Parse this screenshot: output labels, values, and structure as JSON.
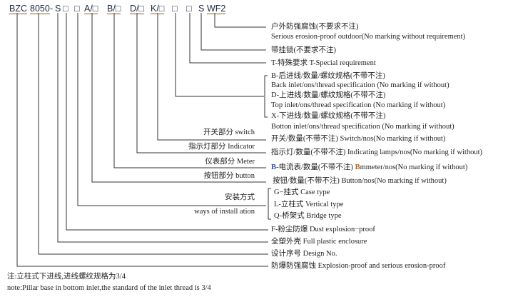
{
  "model_code": {
    "parts": [
      "BZC",
      "8050",
      "-",
      "S",
      "□",
      "□",
      "A/□",
      "B/□",
      "D/□",
      "K/□",
      "□",
      "□",
      "S",
      "WF2"
    ]
  },
  "descriptions": {
    "outdoor_cn": "户外防强腐蚀(不要求不注)",
    "outdoor_en": "Serious erosion-proof outdoor(No marking without requirement)",
    "padlock": "带挂锁(不要求不注)",
    "special": "T-特殊要求 T-Special requirement",
    "back_cn": "B-后进线/数量/螺纹规格(不带不注)",
    "back_en": "Back inlet/ons/thread specification (No marking if without)",
    "top_cn": "D-上进线/数量/螺纹规格(不带不注)",
    "top_en": "Top inlet/ons/thread specification (No marking if without)",
    "bottom_cn": "X-下进线/数量/螺纹规格(不带不注)",
    "bottom_en": "Botton inlet/ons/thread specification (No marking if without)",
    "switch": "开关/数量(不带不注) Switch/nos(No marking if without)",
    "indicator": "指示灯/数量(不带不注) Indicating lamps/nos(No marking if without)",
    "meter_prefix": "B",
    "meter_mid": "-电流表/数量(不带不注) ",
    "meter_b": "B",
    "meter_rest": "mmeter/nos(No marking if without)",
    "button": "按钮/数量(不带不注) Button/nos(No marking if without)",
    "case": "G−挂式 Case type",
    "vertical": "L-立柱式 Vertical type",
    "bridge": "Q-桥架式 Bridge type",
    "dust": "F-粉尘防爆 Dust explosion−proof",
    "plastic": "全塑外壳 Full plastic enclosure",
    "design": "设计序号  Design No.",
    "explosion": "防爆防强腐蚀 Explosion-proof and serious erosion-proof"
  },
  "section_labels": {
    "switch": "开关部分 switch",
    "indicator": "指示灯部分 Indicator",
    "meter": "仪表部分 Meter",
    "button": "按钮部分 button",
    "install_cn": "安装方式",
    "install_en": "ways of install ation"
  },
  "notes": {
    "cn": "注:立柱式下进线,进线螺纹规格为3/4",
    "en": "note:Pillar base in bottom inlet,the standard of the inlet thread is 3/4"
  },
  "colors": {
    "line": "#333333",
    "accent_blue": "#2a4fb0",
    "accent_orange": "#b5651d"
  }
}
